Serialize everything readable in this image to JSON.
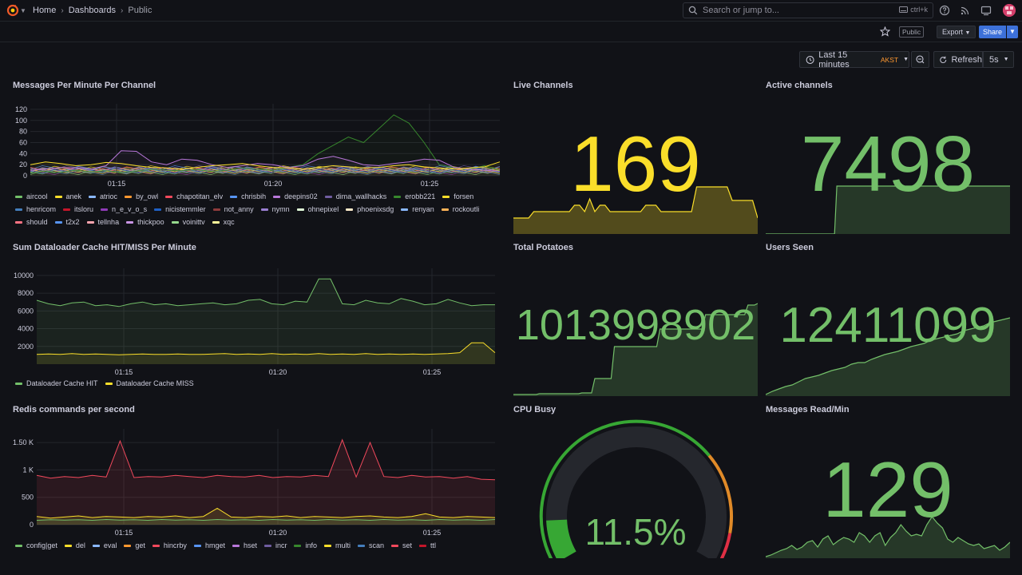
{
  "nav": {
    "breadcrumb": [
      "Home",
      "Dashboards",
      "Public"
    ],
    "search_placeholder": "Search or jump to...",
    "search_shortcut": "ctrl+k",
    "public_badge": "Public",
    "export_label": "Export",
    "share_label": "Share"
  },
  "controls": {
    "time_range": "Last 15 minutes",
    "timezone": "AKST",
    "refresh_label": "Refresh",
    "refresh_interval": "5s"
  },
  "panels": {
    "messages": {
      "title": "Messages Per Minute Per Channel",
      "legend": [
        {
          "name": "aircool",
          "color": "#73bf69"
        },
        {
          "name": "anek",
          "color": "#fade2a"
        },
        {
          "name": "atrioc",
          "color": "#8ab8ff"
        },
        {
          "name": "by_owl",
          "color": "#ff9830"
        },
        {
          "name": "chapotitan_elv",
          "color": "#f2495c"
        },
        {
          "name": "chrisbih",
          "color": "#5794f2"
        },
        {
          "name": "deepins02",
          "color": "#b877d9"
        },
        {
          "name": "dima_wallhacks",
          "color": "#705da0"
        },
        {
          "name": "erobb221",
          "color": "#37872d"
        },
        {
          "name": "forsen",
          "color": "#fade2a"
        },
        {
          "name": "henricom",
          "color": "#447ebc"
        },
        {
          "name": "itsloru",
          "color": "#c4162a"
        },
        {
          "name": "n_e_v_o_s",
          "color": "#8f3bb8"
        },
        {
          "name": "nicistemmler",
          "color": "#1f60c4"
        },
        {
          "name": "not_anny",
          "color": "#8e3b3b"
        },
        {
          "name": "nymn",
          "color": "#9a7fd1"
        },
        {
          "name": "ohnepixel",
          "color": "#e0f9d7"
        },
        {
          "name": "phoenixsdg",
          "color": "#fceaca"
        },
        {
          "name": "renyan",
          "color": "#8ab8ff"
        },
        {
          "name": "rockoutli",
          "color": "#ffb357"
        },
        {
          "name": "should",
          "color": "#ff7383"
        },
        {
          "name": "t2x2",
          "color": "#5794f2"
        },
        {
          "name": "tellnha",
          "color": "#ffa6b0"
        },
        {
          "name": "thickpoo",
          "color": "#ca95e5"
        },
        {
          "name": "voinittv",
          "color": "#96d98d"
        },
        {
          "name": "xqc",
          "color": "#fff899"
        }
      ]
    },
    "cache": {
      "title": "Sum Dataloader Cache HIT/MISS Per Minute",
      "legend": [
        {
          "name": "Dataloader Cache HIT",
          "color": "#73bf69"
        },
        {
          "name": "Dataloader Cache MISS",
          "color": "#fade2a"
        }
      ]
    },
    "redis": {
      "title": "Redis commands per second",
      "legend": [
        {
          "name": "config|get",
          "color": "#73bf69"
        },
        {
          "name": "del",
          "color": "#fade2a"
        },
        {
          "name": "eval",
          "color": "#8ab8ff"
        },
        {
          "name": "get",
          "color": "#ff9830"
        },
        {
          "name": "hincrby",
          "color": "#f2495c"
        },
        {
          "name": "hmget",
          "color": "#5794f2"
        },
        {
          "name": "hset",
          "color": "#b877d9"
        },
        {
          "name": "incr",
          "color": "#705da0"
        },
        {
          "name": "info",
          "color": "#37872d"
        },
        {
          "name": "multi",
          "color": "#fade2a"
        },
        {
          "name": "scan",
          "color": "#447ebc"
        },
        {
          "name": "set",
          "color": "#f2495c"
        },
        {
          "name": "ttl",
          "color": "#c4162a"
        }
      ]
    },
    "live_channels": {
      "title": "Live Channels",
      "value": "169",
      "color": "#fade2a"
    },
    "active_channels": {
      "title": "Active channels",
      "value": "7498",
      "color": "#73bf69"
    },
    "total_potatoes": {
      "title": "Total Potatoes",
      "value": "1013998902",
      "color": "#73bf69"
    },
    "users_seen": {
      "title": "Users Seen",
      "value": "12411099",
      "color": "#73bf69"
    },
    "cpu_busy": {
      "title": "CPU Busy",
      "value": "11.5%",
      "percent": 11.5,
      "color": "#73bf69"
    },
    "messages_read": {
      "title": "Messages Read/Min",
      "value": "129",
      "color": "#73bf69"
    }
  },
  "chart_data": [
    {
      "type": "line",
      "title": "Messages Per Minute Per Channel",
      "x_ticks": [
        "01:15",
        "01:20",
        "01:25"
      ],
      "y_ticks": [
        0,
        20,
        40,
        60,
        80,
        100,
        120
      ],
      "ylim": [
        0,
        130
      ],
      "series": [
        {
          "name": "erobb221",
          "values": [
            5,
            8,
            6,
            10,
            7,
            9,
            6,
            8,
            12,
            10,
            9,
            11,
            8,
            10,
            14,
            12,
            10,
            15,
            20,
            40,
            55,
            70,
            60,
            85,
            110,
            95,
            60,
            20,
            15,
            12,
            18,
            10
          ]
        },
        {
          "name": "deepins02",
          "values": [
            10,
            12,
            15,
            14,
            12,
            18,
            45,
            44,
            25,
            20,
            30,
            28,
            20,
            15,
            18,
            22,
            20,
            15,
            18,
            30,
            35,
            28,
            20,
            18,
            22,
            25,
            30,
            28,
            15,
            12,
            10,
            8
          ]
        },
        {
          "name": "forsen",
          "values": [
            20,
            25,
            22,
            18,
            20,
            24,
            22,
            18,
            15,
            14,
            12,
            15,
            18,
            20,
            22,
            18,
            15,
            14,
            12,
            15,
            18,
            16,
            14,
            15,
            18,
            20,
            16,
            14,
            12,
            14,
            16,
            25
          ]
        }
      ]
    },
    {
      "type": "line",
      "title": "Sum Dataloader Cache HIT/MISS Per Minute",
      "x_ticks": [
        "01:15",
        "01:20",
        "01:25"
      ],
      "y_ticks": [
        2000,
        4000,
        6000,
        8000,
        10000
      ],
      "ylim": [
        0,
        10800
      ],
      "series": [
        {
          "name": "Dataloader Cache HIT",
          "values": [
            7200,
            6800,
            6600,
            6900,
            7000,
            6600,
            6700,
            6500,
            6800,
            7000,
            6700,
            6800,
            6600,
            6700,
            6800,
            6900,
            6700,
            6800,
            7200,
            7300,
            6800,
            6700,
            7100,
            7000,
            9600,
            9600,
            6800,
            6700,
            7200,
            6900,
            6800,
            7400,
            7100,
            6700,
            6800,
            7300,
            6900,
            6600,
            6700,
            6700
          ]
        },
        {
          "name": "Dataloader Cache MISS",
          "values": [
            1100,
            1150,
            1100,
            1200,
            1100,
            1150,
            1100,
            1050,
            1100,
            1150,
            1100,
            1100,
            1150,
            1100,
            1100,
            1150,
            1200,
            1100,
            1150,
            1100,
            1200,
            1100,
            1150,
            1100,
            1200,
            1100,
            1150,
            1100,
            1200,
            1100,
            1150,
            1100,
            1150,
            1100,
            1150,
            1200,
            1300,
            2400,
            2400,
            1300
          ]
        }
      ]
    },
    {
      "type": "area",
      "title": "Redis commands per second",
      "x_ticks": [
        "01:15",
        "01:20",
        "01:25"
      ],
      "y_ticks": [
        "0",
        "500",
        "1 K",
        "1.50 K"
      ],
      "ylim": [
        0,
        1750
      ],
      "series": [
        {
          "name": "ttl",
          "values": [
            900,
            850,
            880,
            860,
            900,
            870,
            1530,
            860,
            880,
            870,
            900,
            880,
            860,
            900,
            880,
            870,
            900,
            860,
            880,
            870,
            900,
            880,
            1550,
            870,
            1500,
            880,
            860,
            900,
            870,
            880,
            850,
            880,
            830,
            820
          ]
        },
        {
          "name": "get",
          "values": [
            150,
            120,
            140,
            160,
            130,
            150,
            140,
            130,
            150,
            140,
            160,
            130,
            150,
            300,
            140,
            130,
            150,
            140,
            160,
            130,
            150,
            140,
            130,
            150,
            160,
            140,
            130,
            150,
            200,
            140,
            130,
            150,
            140,
            130
          ]
        },
        {
          "name": "config|get",
          "values": [
            80,
            90,
            85,
            90,
            80,
            95,
            85,
            90,
            80,
            95,
            85,
            90,
            80,
            95,
            85,
            90,
            80,
            95,
            85,
            90,
            80,
            95,
            85,
            90,
            80,
            95,
            85,
            90,
            80,
            95,
            85,
            90,
            80,
            95
          ]
        }
      ]
    },
    {
      "type": "gauge",
      "title": "CPU Busy",
      "value": 11.5,
      "min": 0,
      "max": 100
    }
  ]
}
